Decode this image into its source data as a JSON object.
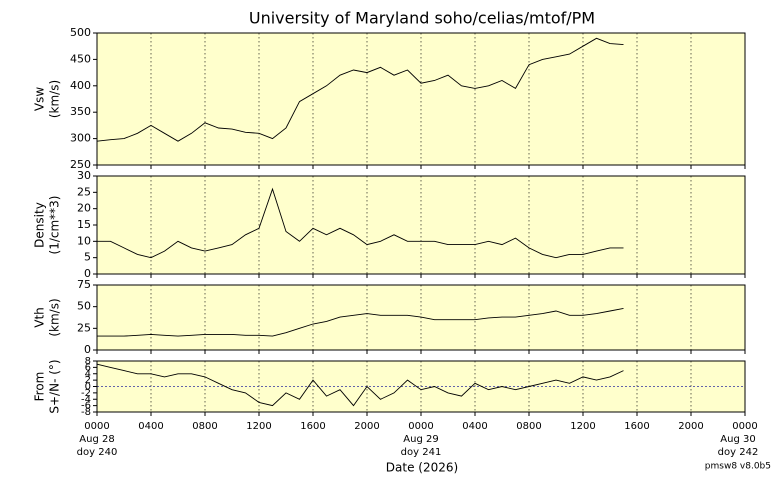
{
  "title": "University of Maryland  soho/celias/mtof/PM",
  "xlabel": "Date (2026)",
  "note": "pmsw8 v8.0b5",
  "xlim": [
    0,
    48
  ],
  "xticks": [
    {
      "value": 0,
      "label": "0000"
    },
    {
      "value": 4,
      "label": "0400"
    },
    {
      "value": 8,
      "label": "0800"
    },
    {
      "value": 12,
      "label": "1200"
    },
    {
      "value": 16,
      "label": "1600"
    },
    {
      "value": 20,
      "label": "2000"
    },
    {
      "value": 24,
      "label": "0000"
    },
    {
      "value": 28,
      "label": "0400"
    },
    {
      "value": 32,
      "label": "0800"
    },
    {
      "value": 36,
      "label": "1200"
    },
    {
      "value": 40,
      "label": "1600"
    },
    {
      "value": 44,
      "label": "2000"
    },
    {
      "value": 48,
      "label": "0000"
    }
  ],
  "day_labels": [
    {
      "value": 0,
      "lines": [
        "Aug 28",
        "doy 240"
      ]
    },
    {
      "value": 24,
      "lines": [
        "Aug 29",
        "doy 241"
      ]
    },
    {
      "value": 48,
      "lines": [
        "Aug 30",
        "doy 242"
      ]
    }
  ],
  "chart_data": [
    {
      "type": "line",
      "ylabel": [
        "Vsw",
        "(km/s)"
      ],
      "color": "#000000",
      "background": "#ffffcc",
      "grid": true,
      "ylim": [
        250,
        500
      ],
      "yticks": [
        250,
        300,
        350,
        400,
        450,
        500
      ],
      "x": [
        0,
        1,
        2,
        3,
        4,
        5,
        6,
        7,
        8,
        9,
        10,
        11,
        12,
        13,
        14,
        15,
        16,
        17,
        18,
        19,
        20,
        21,
        22,
        23,
        24,
        25,
        26,
        27,
        28,
        29,
        30,
        31,
        32,
        33,
        34,
        35,
        36,
        37,
        38,
        39
      ],
      "values": [
        295,
        298,
        300,
        310,
        325,
        310,
        295,
        310,
        330,
        320,
        318,
        312,
        310,
        300,
        320,
        370,
        385,
        400,
        420,
        430,
        425,
        435,
        420,
        430,
        405,
        410,
        420,
        400,
        395,
        400,
        410,
        395,
        440,
        450,
        455,
        460,
        475,
        490,
        480,
        478
      ]
    },
    {
      "type": "line",
      "ylabel": [
        "Density",
        "(1/cm**3)"
      ],
      "color": "#000000",
      "background": "#ffffcc",
      "grid": true,
      "ylim": [
        0,
        30
      ],
      "yticks": [
        0,
        5,
        10,
        15,
        20,
        25,
        30
      ],
      "x": [
        0,
        1,
        2,
        3,
        4,
        5,
        6,
        7,
        8,
        9,
        10,
        11,
        12,
        13,
        14,
        15,
        16,
        17,
        18,
        19,
        20,
        21,
        22,
        23,
        24,
        25,
        26,
        27,
        28,
        29,
        30,
        31,
        32,
        33,
        34,
        35,
        36,
        37,
        38,
        39
      ],
      "values": [
        10,
        10,
        8,
        6,
        5,
        7,
        10,
        8,
        7,
        8,
        9,
        12,
        14,
        26,
        13,
        10,
        14,
        12,
        14,
        12,
        9,
        10,
        12,
        10,
        10,
        10,
        9,
        9,
        9,
        10,
        9,
        11,
        8,
        6,
        5,
        6,
        6,
        7,
        8,
        8
      ]
    },
    {
      "type": "line",
      "ylabel": [
        "Vth",
        "(km/s)"
      ],
      "color": "#000000",
      "background": "#ffffcc",
      "grid": true,
      "ylim": [
        0,
        75
      ],
      "yticks": [
        0,
        25,
        50,
        75
      ],
      "x": [
        0,
        1,
        2,
        3,
        4,
        5,
        6,
        7,
        8,
        9,
        10,
        11,
        12,
        13,
        14,
        15,
        16,
        17,
        18,
        19,
        20,
        21,
        22,
        23,
        24,
        25,
        26,
        27,
        28,
        29,
        30,
        31,
        32,
        33,
        34,
        35,
        36,
        37,
        38,
        39
      ],
      "values": [
        16,
        16,
        16,
        17,
        18,
        17,
        16,
        17,
        18,
        18,
        18,
        17,
        17,
        16,
        20,
        25,
        30,
        33,
        38,
        40,
        42,
        40,
        40,
        40,
        38,
        35,
        35,
        35,
        35,
        37,
        38,
        38,
        40,
        42,
        45,
        40,
        40,
        42,
        45,
        48
      ]
    },
    {
      "type": "line",
      "ylabel": [
        "From",
        "S+/N- (°)"
      ],
      "color": "#000000",
      "background": "#ffffcc",
      "grid": true,
      "hline": 0,
      "ylim": [
        -8,
        8
      ],
      "yticks": [
        -8,
        -6,
        -4,
        -2,
        0,
        2,
        4,
        6,
        8
      ],
      "x": [
        0,
        1,
        2,
        3,
        4,
        5,
        6,
        7,
        8,
        9,
        10,
        11,
        12,
        13,
        14,
        15,
        16,
        17,
        18,
        19,
        20,
        21,
        22,
        23,
        24,
        25,
        26,
        27,
        28,
        29,
        30,
        31,
        32,
        33,
        34,
        35,
        36,
        37,
        38,
        39
      ],
      "values": [
        7,
        6,
        5,
        4,
        4,
        3,
        4,
        4,
        3,
        1,
        -1,
        -2,
        -5,
        -6,
        -2,
        -4,
        2,
        -3,
        -1,
        -6,
        0,
        -4,
        -2,
        2,
        -1,
        0,
        -2,
        -3,
        1,
        -1,
        0,
        -1,
        0,
        1,
        2,
        1,
        3,
        2,
        3,
        5
      ]
    }
  ]
}
